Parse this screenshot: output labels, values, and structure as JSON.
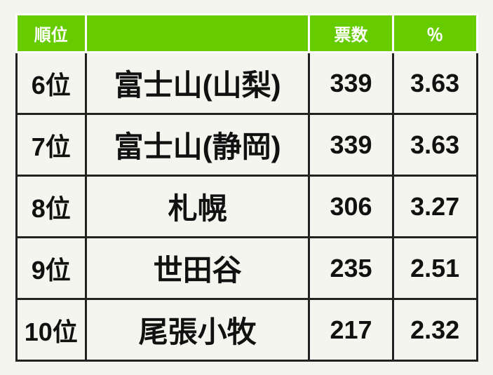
{
  "table": {
    "header_bg": "#66cc00",
    "header_fg": "#ffffff",
    "body_fg": "#111111",
    "border_body": "#222222",
    "border_header": "#ffffff",
    "columns": {
      "rank": "順位",
      "name": "",
      "votes": "票数",
      "pct": "％"
    },
    "rows": [
      {
        "rank": "6位",
        "name": "富士山(山梨)",
        "votes": "339",
        "pct": "3.63"
      },
      {
        "rank": "7位",
        "name": "富士山(静岡)",
        "votes": "339",
        "pct": "3.63"
      },
      {
        "rank": "8位",
        "name": "札幌",
        "votes": "306",
        "pct": "3.27"
      },
      {
        "rank": "9位",
        "name": "世田谷",
        "votes": "235",
        "pct": "2.51"
      },
      {
        "rank": "10位",
        "name": "尾張小牧",
        "votes": "217",
        "pct": "2.32"
      }
    ]
  }
}
